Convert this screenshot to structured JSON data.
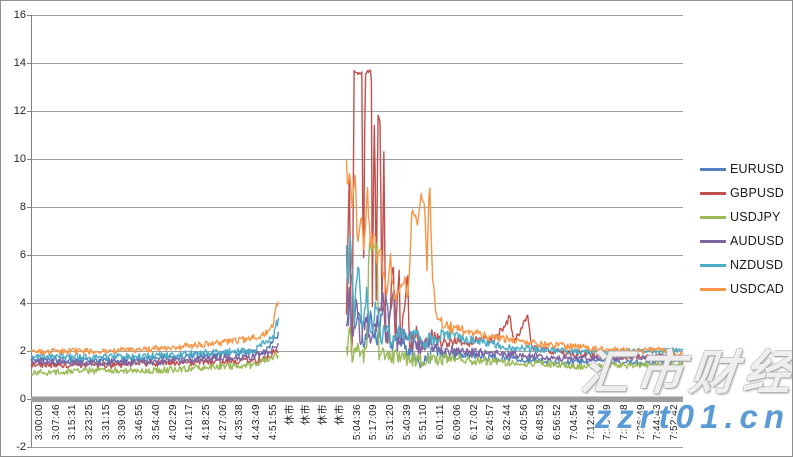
{
  "window": {
    "background": "#ffffff",
    "border_color": "#8f8f8f"
  },
  "watermark": {
    "text": "汇市财经",
    "url": "zzrt01.cn",
    "url_color": "#5b9bd5"
  },
  "chart_data": {
    "type": "line",
    "title": "",
    "xlabel": "",
    "ylabel": "",
    "ylim": [
      -2,
      16
    ],
    "y_ticks": [
      16,
      14,
      12,
      10,
      8,
      6,
      4,
      2,
      0,
      -2
    ],
    "grid": true,
    "gridline_color": "#a0a0a0",
    "axis_line_color": "#808080",
    "zero_axis_bar_color": "#9e9e9e",
    "legend_position": "right",
    "closed_market_label": "休市",
    "categories": [
      "3:00:00",
      "3:07:46",
      "3:15:31",
      "3:23:25",
      "3:31:15",
      "3:39:00",
      "3:46:55",
      "3:54:40",
      "4:02:29",
      "4:10:17",
      "4:18:25",
      "4:27:06",
      "4:35:38",
      "4:43:49",
      "4:51:55",
      "休市",
      "休市",
      "休市",
      "休市",
      "5:04:36",
      "5:17:09",
      "5:31:20",
      "5:40:39",
      "5:51:10",
      "6:01:11",
      "6:09:06",
      "6:17:02",
      "6:24:57",
      "6:32:44",
      "6:40:56",
      "6:48:53",
      "6:56:52",
      "7:04:54",
      "7:12:46",
      "7:20:49",
      "7:28:58",
      "7:36:49",
      "7:44:43",
      "7:52:42"
    ],
    "gap_t": [
      0.3805,
      0.4825
    ],
    "noise_profile": [
      [
        0,
        0.13
      ],
      [
        0.37,
        0.14
      ],
      [
        0.483,
        0.38
      ],
      [
        0.56,
        0.34
      ],
      [
        0.62,
        0.3
      ],
      [
        0.66,
        0.2
      ],
      [
        0.75,
        0.15
      ],
      [
        0.85,
        0.13
      ],
      [
        1,
        0.12
      ]
    ],
    "series": [
      {
        "name": "EURUSD",
        "color": "#4F81BD",
        "points": [
          [
            0,
            1.65
          ],
          [
            0.08,
            1.6
          ],
          [
            0.16,
            1.62
          ],
          [
            0.2,
            1.75
          ],
          [
            0.27,
            1.8
          ],
          [
            0.33,
            1.95
          ],
          [
            0.36,
            2.0
          ],
          [
            0.374,
            2.5
          ],
          [
            0.376,
            2.6
          ],
          [
            0.483,
            6.5
          ],
          [
            0.487,
            3.2
          ],
          [
            0.492,
            5.2
          ],
          [
            0.497,
            2.6
          ],
          [
            0.503,
            3.8
          ],
          [
            0.51,
            2.2
          ],
          [
            0.52,
            3.4
          ],
          [
            0.53,
            2.4
          ],
          [
            0.545,
            4.3
          ],
          [
            0.553,
            2.0
          ],
          [
            0.565,
            2.6
          ],
          [
            0.58,
            1.9
          ],
          [
            0.6,
            1.35
          ],
          [
            0.62,
            2.1
          ],
          [
            0.64,
            1.8
          ],
          [
            0.67,
            1.9
          ],
          [
            0.7,
            1.75
          ],
          [
            0.74,
            1.7
          ],
          [
            0.78,
            1.6
          ],
          [
            0.83,
            1.55
          ],
          [
            0.88,
            1.6
          ],
          [
            0.93,
            1.5
          ],
          [
            1,
            1.6
          ]
        ]
      },
      {
        "name": "GBPUSD",
        "color": "#C0504D",
        "points": [
          [
            0,
            1.45
          ],
          [
            0.1,
            1.4
          ],
          [
            0.2,
            1.5
          ],
          [
            0.3,
            1.55
          ],
          [
            0.36,
            1.65
          ],
          [
            0.374,
            1.95
          ],
          [
            0.376,
            2.0
          ],
          [
            0.483,
            2.4
          ],
          [
            0.488,
            9.8
          ],
          [
            0.492,
            -0.1
          ],
          [
            0.4955,
            13.62
          ],
          [
            0.508,
            13.62
          ],
          [
            0.5095,
            3.2
          ],
          [
            0.5125,
            13.62
          ],
          [
            0.522,
            13.62
          ],
          [
            0.5235,
            4.0
          ],
          [
            0.527,
            12.8
          ],
          [
            0.5295,
            3.6
          ],
          [
            0.532,
            11.9
          ],
          [
            0.536,
            11.4
          ],
          [
            0.538,
            3.0
          ],
          [
            0.5415,
            11.0
          ],
          [
            0.5435,
            2.6
          ],
          [
            0.548,
            2.2
          ],
          [
            0.5555,
            5.9
          ],
          [
            0.558,
            2.3
          ],
          [
            0.5645,
            5.6
          ],
          [
            0.567,
            2.1
          ],
          [
            0.5775,
            5.5
          ],
          [
            0.58,
            2.2
          ],
          [
            0.59,
            2.8
          ],
          [
            0.6,
            2.2
          ],
          [
            0.615,
            2.6
          ],
          [
            0.63,
            2.3
          ],
          [
            0.65,
            2.5
          ],
          [
            0.67,
            2.3
          ],
          [
            0.69,
            2.6
          ],
          [
            0.71,
            2.4
          ],
          [
            0.735,
            3.4
          ],
          [
            0.741,
            2.3
          ],
          [
            0.762,
            3.5
          ],
          [
            0.768,
            2.2
          ],
          [
            0.8,
            2.0
          ],
          [
            0.85,
            1.85
          ],
          [
            0.9,
            1.75
          ],
          [
            0.95,
            1.8
          ],
          [
            1,
            1.8
          ]
        ]
      },
      {
        "name": "USDJPY",
        "color": "#9BBB59",
        "points": [
          [
            0,
            1.1
          ],
          [
            0.1,
            1.18
          ],
          [
            0.2,
            1.2
          ],
          [
            0.28,
            1.35
          ],
          [
            0.34,
            1.4
          ],
          [
            0.374,
            1.8
          ],
          [
            0.376,
            1.85
          ],
          [
            0.483,
            1.6
          ],
          [
            0.488,
            2.9
          ],
          [
            0.493,
            1.8
          ],
          [
            0.5,
            2.2
          ],
          [
            0.508,
            1.8
          ],
          [
            0.516,
            2.0
          ],
          [
            0.518,
            6.3
          ],
          [
            0.531,
            6.3
          ],
          [
            0.533,
            1.9
          ],
          [
            0.55,
            1.75
          ],
          [
            0.58,
            1.7
          ],
          [
            0.61,
            1.6
          ],
          [
            0.64,
            1.7
          ],
          [
            0.68,
            1.6
          ],
          [
            0.72,
            1.55
          ],
          [
            0.76,
            1.5
          ],
          [
            0.8,
            1.45
          ],
          [
            0.85,
            1.35
          ],
          [
            0.9,
            1.4
          ],
          [
            0.95,
            1.4
          ],
          [
            1,
            1.45
          ]
        ]
      },
      {
        "name": "AUDUSD",
        "color": "#8064A2",
        "points": [
          [
            0,
            1.55
          ],
          [
            0.1,
            1.5
          ],
          [
            0.2,
            1.55
          ],
          [
            0.28,
            1.7
          ],
          [
            0.34,
            1.75
          ],
          [
            0.374,
            2.1
          ],
          [
            0.376,
            2.15
          ],
          [
            0.483,
            2.6
          ],
          [
            0.488,
            4.5
          ],
          [
            0.493,
            2.7
          ],
          [
            0.5,
            4.2
          ],
          [
            0.505,
            2.5
          ],
          [
            0.515,
            3.4
          ],
          [
            0.52,
            2.4
          ],
          [
            0.53,
            3.0
          ],
          [
            0.54,
            4.4
          ],
          [
            0.545,
            2.3
          ],
          [
            0.557,
            4.4
          ],
          [
            0.562,
            2.2
          ],
          [
            0.575,
            2.8
          ],
          [
            0.59,
            2.1
          ],
          [
            0.61,
            2.3
          ],
          [
            0.63,
            2.0
          ],
          [
            0.66,
            2.0
          ],
          [
            0.7,
            1.9
          ],
          [
            0.75,
            1.85
          ],
          [
            0.8,
            1.75
          ],
          [
            0.85,
            1.7
          ],
          [
            0.9,
            1.72
          ],
          [
            1,
            1.75
          ]
        ]
      },
      {
        "name": "NZDUSD",
        "color": "#4BACC6",
        "points": [
          [
            0,
            1.8
          ],
          [
            0.1,
            1.75
          ],
          [
            0.2,
            1.8
          ],
          [
            0.28,
            1.95
          ],
          [
            0.34,
            2.0
          ],
          [
            0.372,
            2.6
          ],
          [
            0.376,
            3.1
          ],
          [
            0.483,
            7.5
          ],
          [
            0.486,
            4.2
          ],
          [
            0.49,
            6.9
          ],
          [
            0.495,
            3.2
          ],
          [
            0.502,
            5.6
          ],
          [
            0.508,
            2.7
          ],
          [
            0.515,
            4.4
          ],
          [
            0.522,
            2.5
          ],
          [
            0.53,
            4.1
          ],
          [
            0.537,
            2.4
          ],
          [
            0.545,
            3.2
          ],
          [
            0.553,
            2.3
          ],
          [
            0.565,
            2.9
          ],
          [
            0.578,
            2.4
          ],
          [
            0.59,
            2.7
          ],
          [
            0.605,
            2.4
          ],
          [
            0.625,
            2.6
          ],
          [
            0.645,
            2.7
          ],
          [
            0.665,
            2.5
          ],
          [
            0.69,
            2.4
          ],
          [
            0.72,
            2.2
          ],
          [
            0.76,
            2.1
          ],
          [
            0.8,
            2.05
          ],
          [
            0.85,
            1.95
          ],
          [
            0.9,
            2.0
          ],
          [
            1,
            2.0
          ]
        ]
      },
      {
        "name": "USDCAD",
        "color": "#F79646",
        "points": [
          [
            0,
            1.95
          ],
          [
            0.08,
            2.0
          ],
          [
            0.16,
            2.05
          ],
          [
            0.22,
            2.15
          ],
          [
            0.28,
            2.3
          ],
          [
            0.32,
            2.45
          ],
          [
            0.35,
            2.6
          ],
          [
            0.365,
            2.8
          ],
          [
            0.372,
            3.2
          ],
          [
            0.376,
            3.8
          ],
          [
            0.483,
            10.7
          ],
          [
            0.486,
            8.4
          ],
          [
            0.489,
            9.6
          ],
          [
            0.493,
            8.0
          ],
          [
            0.497,
            9.0
          ],
          [
            0.501,
            6.6
          ],
          [
            0.506,
            7.6
          ],
          [
            0.511,
            6.4
          ],
          [
            0.516,
            8.8
          ],
          [
            0.521,
            6.2
          ],
          [
            0.526,
            7.1
          ],
          [
            0.531,
            5.6
          ],
          [
            0.537,
            6.1
          ],
          [
            0.545,
            4.2
          ],
          [
            0.551,
            6.0
          ],
          [
            0.557,
            4.1
          ],
          [
            0.565,
            4.3
          ],
          [
            0.571,
            5.1
          ],
          [
            0.578,
            4.3
          ],
          [
            0.585,
            8.1
          ],
          [
            0.592,
            7.1
          ],
          [
            0.598,
            8.3
          ],
          [
            0.604,
            8.2
          ],
          [
            0.607,
            5.2
          ],
          [
            0.611,
            9.4
          ],
          [
            0.616,
            5.0
          ],
          [
            0.621,
            3.3
          ],
          [
            0.64,
            3.0
          ],
          [
            0.67,
            2.8
          ],
          [
            0.7,
            2.6
          ],
          [
            0.74,
            2.45
          ],
          [
            0.78,
            2.3
          ],
          [
            0.82,
            2.2
          ],
          [
            0.87,
            2.1
          ],
          [
            0.92,
            2.0
          ],
          [
            0.96,
            2.05
          ],
          [
            1,
            1.9
          ]
        ]
      }
    ]
  }
}
